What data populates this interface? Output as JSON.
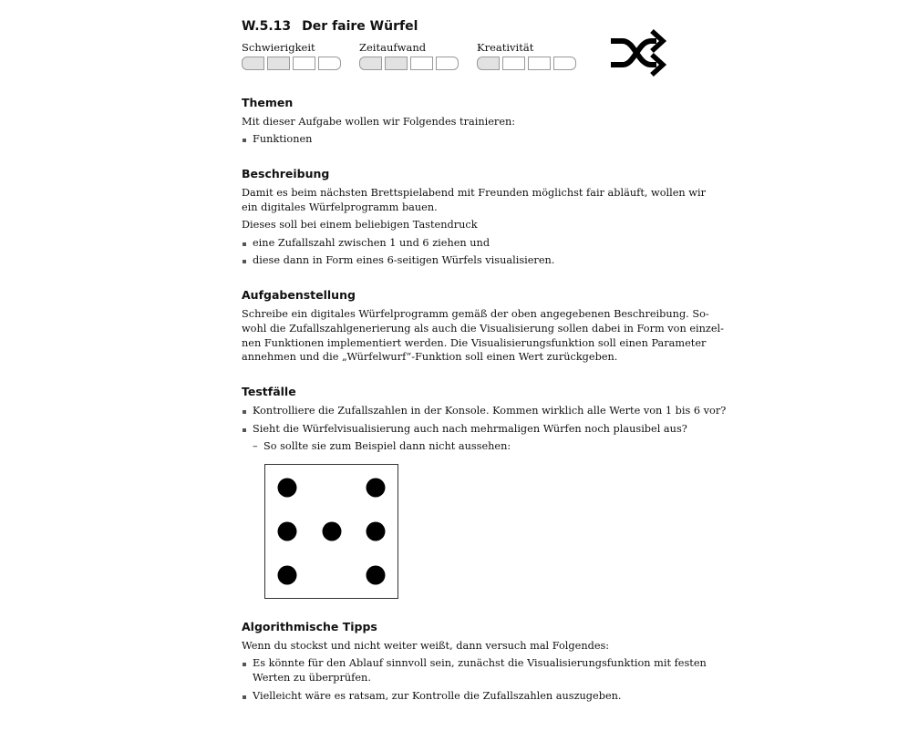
{
  "header": {
    "number": "W.5.13",
    "title": "Der faire Würfel",
    "shuffle_icon": "shuffle-icon"
  },
  "ratings": [
    {
      "label": "Schwierigkeit",
      "level": 2,
      "max": 4
    },
    {
      "label": "Zeitaufwand",
      "level": 2,
      "max": 4
    },
    {
      "label": "Kreativität",
      "level": 1,
      "max": 4
    }
  ],
  "themen": {
    "heading": "Themen",
    "intro": "Mit dieser Aufgabe wollen wir Folgendes trainieren:",
    "items": [
      "Funktionen"
    ]
  },
  "beschreibung": {
    "heading": "Beschreibung",
    "line1": "Damit es beim nächsten Brettspielabend mit Freunden möglichst fair abläuft, wollen wir",
    "line2": "ein digitales Würfelprogramm bauen.",
    "line3": "Dieses soll bei einem beliebigen Tastendruck",
    "items": [
      "eine Zufallszahl zwischen 1 und 6 ziehen und",
      "diese dann in Form eines 6-seitigen Würfels visualisieren."
    ]
  },
  "aufgabenstellung": {
    "heading": "Aufgabenstellung",
    "lines": [
      "Schreibe ein digitales Würfelprogramm gemäß der oben angegebenen Beschreibung. So-",
      "wohl die Zufallszahlgenerierung als auch die Visualisierung sollen dabei in Form von einzel-",
      "nen Funktionen implementiert werden. Die Visualisierungsfunktion soll einen Parameter",
      "annehmen und die „Würfelwurf“-Funktion soll einen Wert zurückgeben."
    ]
  },
  "testfaelle": {
    "heading": "Testfälle",
    "items": [
      "Kontrolliere die Zufallszahlen in der Konsole. Kommen wirklich alle Werte von 1 bis 6 vor?",
      "Sieht die Würfelvisualisierung auch nach mehrmaligen Würfen noch plausibel aus?"
    ],
    "subitem": "So sollte sie zum Beispiel dann nicht aussehen:",
    "die_pips": 7
  },
  "tipps": {
    "heading": "Algorithmische Tipps",
    "intro": "Wenn du stockst und nicht weiter weißt, dann versuch mal Folgendes:",
    "item1_line1": "Es könnte für den Ablauf sinnvoll sein, zunächst die Visualisierungsfunktion mit festen",
    "item1_line2": "Werten zu überprüfen.",
    "item2": "Vielleicht wäre es ratsam, zur Kontrolle die Zufallszahlen auszugeben."
  }
}
